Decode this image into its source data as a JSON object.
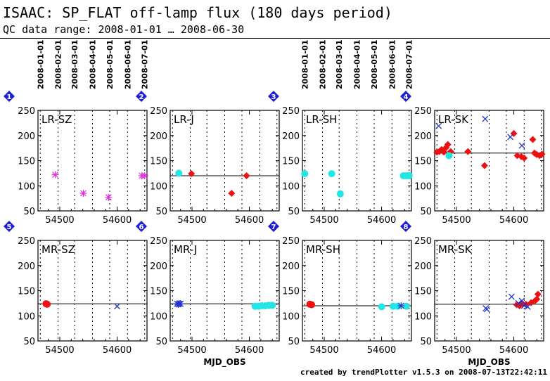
{
  "page": {
    "title": "ISAAC: SP_FLAT off-lamp flux (180 days period)",
    "subtitle": "QC data range: 2008-01-01 … 2008-06-30",
    "footer": "created by trendPlotter v1.5.3 on 2008-07-13T22:42:11"
  },
  "colors": {
    "magenta": "#dd33dd",
    "red": "#ee1111",
    "cyan": "#22e6e6",
    "blue": "#2233cc",
    "badge": "#1f1fd6",
    "grid": "#000000"
  },
  "chart_data": {
    "type": "scatter",
    "date_ticks": [
      "2008-01-01",
      "2008-02-01",
      "2008-03-01",
      "2008-04-01",
      "2008-05-01",
      "2008-06-01",
      "2008-07-01"
    ],
    "date_tick_mjd": [
      54466,
      54497,
      54526,
      54557,
      54587,
      54618,
      54648
    ],
    "x_ticks": [
      54500,
      54600
    ],
    "xlim": [
      54462,
      54652
    ],
    "y_ticks": [
      50,
      100,
      150,
      200,
      250
    ],
    "ylim": [
      50,
      250
    ],
    "xlabel": "MJD_OBS",
    "panels": [
      {
        "number": "1",
        "label": "LR-SZ",
        "reference": null,
        "series": [
          {
            "color": "magenta",
            "marker": "asterisk",
            "points": [
              [
                54492,
                122
              ],
              [
                54541,
                85
              ],
              [
                54585,
                77
              ],
              [
                54643,
                120
              ],
              [
                54648,
                120
              ]
            ]
          }
        ]
      },
      {
        "number": "2",
        "label": "LR-J",
        "reference": 120,
        "series": [
          {
            "color": "cyan",
            "marker": "circle",
            "points": [
              [
                54477,
                125
              ]
            ]
          },
          {
            "color": "red",
            "marker": "diamond",
            "points": [
              [
                54499,
                124
              ],
              [
                54569,
                85
              ],
              [
                54595,
                120
              ]
            ]
          }
        ]
      },
      {
        "number": "3",
        "label": "LR-SH",
        "reference": null,
        "series": [
          {
            "color": "cyan",
            "marker": "circle",
            "points": [
              [
                54466,
                124
              ],
              [
                54513,
                124
              ],
              [
                54528,
                84
              ],
              [
                54638,
                120
              ],
              [
                54643,
                120
              ],
              [
                54648,
                120
              ]
            ]
          }
        ]
      },
      {
        "number": "4",
        "label": "LR-SK",
        "reference": 165,
        "series": [
          {
            "color": "red",
            "marker": "diamond",
            "points": [
              [
                54466,
                167
              ],
              [
                54470,
                168
              ],
              [
                54474,
                172
              ],
              [
                54478,
                167
              ],
              [
                54482,
                176
              ],
              [
                54485,
                182
              ],
              [
                54490,
                168
              ],
              [
                54520,
                168
              ],
              [
                54549,
                140
              ],
              [
                54600,
                204
              ],
              [
                54606,
                160
              ],
              [
                54613,
                158
              ],
              [
                54618,
                155
              ],
              [
                54633,
                192
              ],
              [
                54636,
                165
              ],
              [
                54640,
                162
              ],
              [
                54645,
                160
              ],
              [
                54649,
                163
              ]
            ]
          },
          {
            "color": "cyan",
            "marker": "circle",
            "points": [
              [
                54487,
                160
              ]
            ]
          },
          {
            "color": "blue",
            "marker": "cross",
            "points": [
              [
                54469,
                219
              ],
              [
                54550,
                233
              ],
              [
                54594,
                197
              ],
              [
                54614,
                180
              ]
            ]
          }
        ]
      },
      {
        "number": "5",
        "label": "MR-SZ",
        "reference": 124,
        "series": [
          {
            "color": "red",
            "marker": "circle",
            "points": [
              [
                54476,
                124
              ],
              [
                54478,
                123
              ]
            ]
          },
          {
            "color": "blue",
            "marker": "cross",
            "points": [
              [
                54600,
                119
              ]
            ]
          }
        ]
      },
      {
        "number": "6",
        "label": "MR-J",
        "reference": 124,
        "series": [
          {
            "color": "blue",
            "marker": "asterisk",
            "points": [
              [
                54474,
                124
              ],
              [
                54476,
                123
              ],
              [
                54478,
                124
              ],
              [
                54480,
                124
              ]
            ]
          },
          {
            "color": "cyan",
            "marker": "circle",
            "points": [
              [
                54610,
                119
              ],
              [
                54616,
                119
              ],
              [
                54622,
                120
              ],
              [
                54628,
                120
              ],
              [
                54634,
                121
              ],
              [
                54640,
                121
              ]
            ]
          }
        ]
      },
      {
        "number": "7",
        "label": "MR-SH",
        "reference": 120,
        "series": [
          {
            "color": "red",
            "marker": "circle",
            "points": [
              [
                54475,
                123
              ],
              [
                54478,
                122
              ]
            ]
          },
          {
            "color": "cyan",
            "marker": "circle",
            "points": [
              [
                54600,
                118
              ],
              [
                54620,
                119
              ],
              [
                54628,
                119
              ],
              [
                54643,
                119
              ]
            ]
          },
          {
            "color": "blue",
            "marker": "asterisk",
            "points": [
              [
                54634,
                120
              ]
            ]
          }
        ]
      },
      {
        "number": "8",
        "label": "MR-SK",
        "reference": 123,
        "series": [
          {
            "color": "red",
            "marker": "diamond",
            "points": [
              [
                54605,
                122
              ],
              [
                54610,
                120
              ],
              [
                54615,
                124
              ],
              [
                54621,
                123
              ],
              [
                54630,
                126
              ],
              [
                54637,
                130
              ],
              [
                54640,
                133
              ],
              [
                54642,
                143
              ]
            ]
          },
          {
            "color": "blue",
            "marker": "cross",
            "points": [
              [
                54551,
                115
              ],
              [
                54553,
                113
              ],
              [
                54596,
                138
              ],
              [
                54608,
                125
              ],
              [
                54614,
                130
              ],
              [
                54618,
                120
              ],
              [
                54624,
                118
              ]
            ]
          }
        ]
      }
    ]
  }
}
